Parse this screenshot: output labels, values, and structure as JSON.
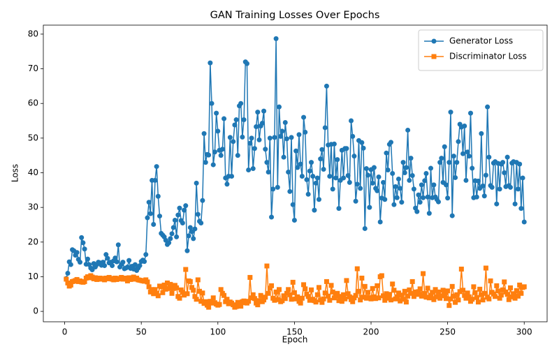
{
  "chart_data": {
    "type": "line",
    "title": "GAN Training Losses Over Epochs",
    "x_label": "Epoch",
    "y_label": "Loss",
    "x": [
      1,
      2,
      3,
      4,
      5,
      6,
      7,
      8,
      9,
      10,
      11,
      12,
      13,
      14,
      15,
      16,
      17,
      18,
      19,
      20,
      21,
      22,
      23,
      24,
      25,
      26,
      27,
      28,
      29,
      30,
      31,
      32,
      33,
      34,
      35,
      36,
      37,
      38,
      39,
      40,
      41,
      42,
      43,
      44,
      45,
      46,
      47,
      48,
      49,
      50,
      51,
      52,
      53,
      54,
      55,
      56,
      57,
      58,
      59,
      60,
      61,
      62,
      63,
      64,
      65,
      66,
      67,
      68,
      69,
      70,
      71,
      72,
      73,
      74,
      75,
      76,
      77,
      78,
      79,
      80,
      81,
      82,
      83,
      84,
      85,
      86,
      87,
      88,
      89,
      90,
      91,
      92,
      93,
      94,
      95,
      96,
      97,
      98,
      99,
      100,
      101,
      102,
      103,
      104,
      105,
      106,
      107,
      108,
      109,
      110,
      111,
      112,
      113,
      114,
      115,
      116,
      117,
      118,
      119,
      120,
      121,
      122,
      123,
      124,
      125,
      126,
      127,
      128,
      129,
      130,
      131,
      132,
      133,
      134,
      135,
      136,
      137,
      138,
      139,
      140,
      141,
      142,
      143,
      144,
      145,
      146,
      147,
      148,
      149,
      150,
      151,
      152,
      153,
      154,
      155,
      156,
      157,
      158,
      159,
      160,
      161,
      162,
      163,
      164,
      165,
      166,
      167,
      168,
      169,
      170,
      171,
      172,
      173,
      174,
      175,
      176,
      177,
      178,
      179,
      180,
      181,
      182,
      183,
      184,
      185,
      186,
      187,
      188,
      189,
      190,
      191,
      192,
      193,
      194,
      195,
      196,
      197,
      198,
      199,
      200,
      201,
      202,
      203,
      204,
      205,
      206,
      207,
      208,
      209,
      210,
      211,
      212,
      213,
      214,
      215,
      216,
      217,
      218,
      219,
      220,
      221,
      222,
      223,
      224,
      225,
      226,
      227,
      228,
      229,
      230,
      231,
      232,
      233,
      234,
      235,
      236,
      237,
      238,
      239,
      240,
      241,
      242,
      243,
      244,
      245,
      246,
      247,
      248,
      249,
      250,
      251,
      252,
      253,
      254,
      255,
      256,
      257,
      258,
      259,
      260,
      261,
      262,
      263,
      264,
      265,
      266,
      267,
      268,
      269,
      270,
      271,
      272,
      273,
      274,
      275,
      276,
      277,
      278,
      279,
      280,
      281,
      282,
      283,
      284,
      285,
      286,
      287,
      288,
      289,
      290,
      291,
      292,
      293,
      294,
      295,
      296,
      297,
      298,
      299,
      300
    ],
    "series": [
      {
        "name": "Generator Loss",
        "color": "#1f77b4",
        "marker": "circle",
        "values": [
          9.5,
          11,
          14.3,
          13.5,
          17.8,
          17.5,
          16.2,
          17,
          15,
          14.2,
          21.3,
          19.8,
          18,
          13.6,
          15.1,
          13.5,
          12.5,
          12,
          13.8,
          12.8,
          13.5,
          14.2,
          14,
          13.3,
          14.2,
          13.2,
          16.4,
          15.3,
          14,
          14.2,
          13.2,
          14.6,
          15.4,
          14.3,
          19.2,
          12.8,
          13.5,
          14.2,
          12.3,
          12.5,
          12.8,
          14.7,
          12.4,
          13,
          12.2,
          13.5,
          11.8,
          12.5,
          13.2,
          14.4,
          14.8,
          14.4,
          16.4,
          27,
          31.5,
          28.2,
          37.8,
          25.1,
          37.8,
          41.8,
          33.2,
          27.5,
          22.5,
          22,
          21.5,
          20.5,
          19.3,
          19.8,
          21,
          22.4,
          24.2,
          26.3,
          21.5,
          27.8,
          29.8,
          26.2,
          25.5,
          29.2,
          30.5,
          17.5,
          21.8,
          24.2,
          23,
          21,
          23.8,
          37,
          28,
          26,
          25.5,
          32,
          51.3,
          43,
          45.3,
          45.1,
          71.7,
          60,
          42.3,
          46,
          57.2,
          52,
          46.5,
          45,
          46.8,
          55.6,
          38.5,
          36.7,
          39,
          50.2,
          39,
          49,
          53.8,
          55.3,
          45,
          59.3,
          60,
          50.3,
          55.3,
          72,
          71.5,
          40.8,
          48.5,
          50,
          41.2,
          47,
          53.3,
          57.5,
          49.5,
          53.5,
          54.3,
          57.8,
          46.8,
          43,
          40.2,
          50,
          27.2,
          35.3,
          50.2,
          78.7,
          35.8,
          59,
          50.5,
          52,
          44.5,
          54.5,
          49.8,
          40.2,
          34.6,
          50.2,
          30.8,
          26.3,
          46.3,
          41.5,
          51,
          42.5,
          39,
          56,
          51.7,
          38,
          33.8,
          40.5,
          43,
          39,
          29.2,
          37,
          38.5,
          32.3,
          44,
          46.7,
          41,
          53,
          65,
          48,
          39,
          48.2,
          35.3,
          48.3,
          38.5,
          43.8,
          29.7,
          37.8,
          46.5,
          38.5,
          47,
          47,
          39.2,
          37.2,
          55,
          50.5,
          44.8,
          31.8,
          36.7,
          49.3,
          35.5,
          48.7,
          47.1,
          23.9,
          41.2,
          39.3,
          30,
          40.9,
          37,
          41.5,
          35.5,
          34.8,
          38.8,
          25.8,
          32.7,
          37.2,
          32.3,
          45.7,
          40.8,
          48.2,
          48.8,
          39.8,
          30.8,
          36,
          32.8,
          38.2,
          35.5,
          31.5,
          43,
          40,
          41.5,
          52.3,
          37.8,
          44.2,
          39.2,
          35.3,
          29.8,
          28.8,
          33.6,
          31.5,
          36.5,
          32.8,
          37.7,
          39.8,
          33,
          28.3,
          41.3,
          32.8,
          36.5,
          33,
          32.3,
          31.6,
          43,
          44.2,
          37.2,
          47.5,
          36.5,
          32.7,
          43,
          57.5,
          27.6,
          44.8,
          38.6,
          43,
          49,
          54,
          53.2,
          45.5,
          53.5,
          37.8,
          46,
          44.8,
          57.2,
          41.3,
          32.8,
          37.7,
          33,
          37.6,
          35.5,
          51.3,
          36.2,
          33.3,
          39.3,
          59,
          44.5,
          36.3,
          35.8,
          42.8,
          43.2,
          31,
          42.7,
          35.3,
          42.5,
          43,
          40,
          36,
          44.5,
          36.3,
          35.8,
          42.8,
          43.2,
          31,
          43,
          35.3,
          42.5,
          29.7,
          38.5,
          25.8
        ]
      },
      {
        "name": "Discriminator Loss",
        "color": "#ff7f0e",
        "marker": "square",
        "values": [
          9.3,
          8.2,
          7.3,
          7.6,
          8.6,
          8.7,
          8.9,
          9.2,
          8.6,
          8.8,
          8.5,
          8.4,
          8.6,
          9.6,
          10,
          9.7,
          10.3,
          9.9,
          9.4,
          9.7,
          9.2,
          9.4,
          9.6,
          9.3,
          9.5,
          9.1,
          9.6,
          9.4,
          9.8,
          9.5,
          9.3,
          9.1,
          9.6,
          9.2,
          9.4,
          9.5,
          9.8,
          9.3,
          9.6,
          9.4,
          8.8,
          9.7,
          9.2,
          9.5,
          9.9,
          9.3,
          9.6,
          9.1,
          9.0,
          8.9,
          8.8,
          8.7,
          9.1,
          8.5,
          7.1,
          5.6,
          6.3,
          5.1,
          6.3,
          5.2,
          4.5,
          7.3,
          7.1,
          5.4,
          7.6,
          6.4,
          8.2,
          6.6,
          7.8,
          5.2,
          6.6,
          7.5,
          6.8,
          4.3,
          3.8,
          6.2,
          5.5,
          4.7,
          12.1,
          5.1,
          8.8,
          8.6,
          6.9,
          6.1,
          4.3,
          3.5,
          9.1,
          5.8,
          2.9,
          5.3,
          2.3,
          2.8,
          1.8,
          1.2,
          2.9,
          2.4,
          3.9,
          2.5,
          2.1,
          1.8,
          2.0,
          6.3,
          5.2,
          4.6,
          2.8,
          3.5,
          2.2,
          2.7,
          2.4,
          1.9,
          1.2,
          1.4,
          2.6,
          2.1,
          1.5,
          2.8,
          3.0,
          2.5,
          2.4,
          2.9,
          9.8,
          3.9,
          4.8,
          3.7,
          2.4,
          1.9,
          3.1,
          4.6,
          2.8,
          3.3,
          4.1,
          13.1,
          5.2,
          6.7,
          7.4,
          3.8,
          3.2,
          5.6,
          3.4,
          6.3,
          2.8,
          3.1,
          4.5,
          3.7,
          5.2,
          6.3,
          4.8,
          3.5,
          8.4,
          5.4,
          3.6,
          4.2,
          2.9,
          2.4,
          3.8,
          7.7,
          6.5,
          5.0,
          4.3,
          3.2,
          6.2,
          3.5,
          3.1,
          2.7,
          4.8,
          6.9,
          3.3,
          2.6,
          3.6,
          5.3,
          8.6,
          4.4,
          3.2,
          7.5,
          5.6,
          3.9,
          4.5,
          5.2,
          3.1,
          4.3,
          2.9,
          4.8,
          3.6,
          8.9,
          5.1,
          4.2,
          3.4,
          2.8,
          3.9,
          4.6,
          12.3,
          5.8,
          3.3,
          9.6,
          4.1,
          7.2,
          3.8,
          5.5,
          4.0,
          3.6,
          6.6,
          4.2,
          3.7,
          7.4,
          3.9,
          10.0,
          10.3,
          4.5,
          3.2,
          5.1,
          3.8,
          4.9,
          3.3,
          7.9,
          6.1,
          3.6,
          4.2,
          5.3,
          3.0,
          4.7,
          3.5,
          5.8,
          2.7,
          4.4,
          6.2,
          5.2,
          8.6,
          4.3,
          5.6,
          4.9,
          5.7,
          6.5,
          4.4,
          10.9,
          5.2,
          4.1,
          6.7,
          3.9,
          4.6,
          5.5,
          3.4,
          6.3,
          4.2,
          5.6,
          3.8,
          4.5,
          6.1,
          5.0,
          3.7,
          5.9,
          1.7,
          3.6,
          7.2,
          4.4,
          2.6,
          4.8,
          3.3,
          5.7,
          12.2,
          6.1,
          4.6,
          3.8,
          5.3,
          4.2,
          2.9,
          3.5,
          7.1,
          5.4,
          4.0,
          2.7,
          6.4,
          4.8,
          3.3,
          5.2,
          12.5,
          4.1,
          3.6,
          8.8,
          5.5,
          5.0,
          4.3,
          7.4,
          5.9,
          3.8,
          4.7,
          6.2,
          8.5,
          5.6,
          4.9,
          3.4,
          6.8,
          4.2,
          5.1,
          3.8,
          6.0,
          4.4,
          7.6,
          5.2,
          6.9,
          7.1
        ]
      }
    ],
    "xlim": [
      -13.95,
      314.95
    ],
    "xticks": [
      0,
      50,
      100,
      150,
      200,
      250,
      300
    ],
    "ylim": [
      -3.0,
      82.6
    ],
    "yticks": [
      0,
      10,
      20,
      30,
      40,
      50,
      60,
      70,
      80
    ],
    "legend": "upper right",
    "grid": false
  }
}
